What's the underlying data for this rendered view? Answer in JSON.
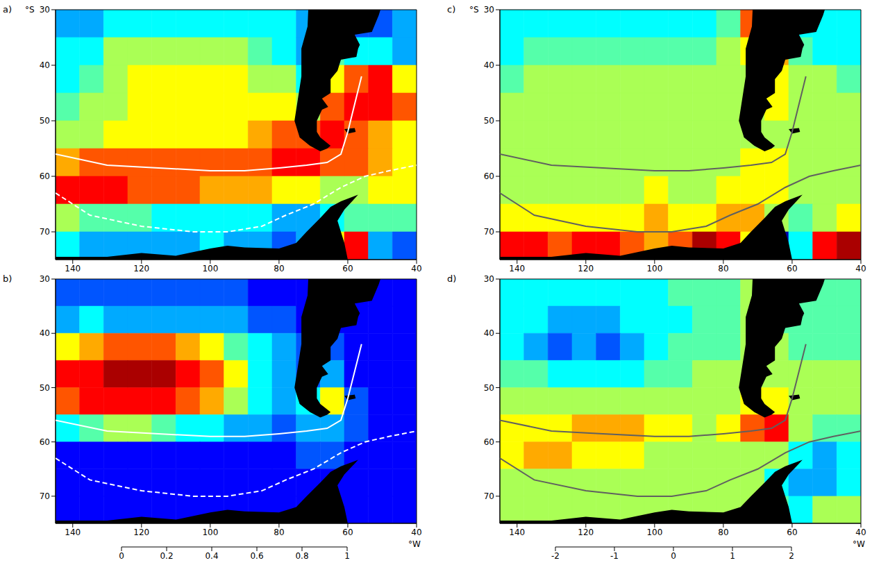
{
  "chart_data": [
    {
      "type": "heatmap",
      "title": "a)",
      "ylabel": "°S",
      "xlim": [
        145,
        40
      ],
      "ylim": [
        75,
        30
      ],
      "xticks": [
        140,
        120,
        100,
        80,
        60,
        40
      ],
      "yticks": [
        30,
        40,
        50,
        60,
        70
      ],
      "xbins": [
        145,
        138,
        131,
        124,
        117,
        110,
        103,
        96,
        89,
        82,
        75,
        68,
        61,
        54,
        47,
        40
      ],
      "ybins": [
        30,
        35,
        40,
        45,
        50,
        55,
        60,
        65,
        70,
        75
      ],
      "cells": [
        [
          0.3,
          0.3,
          0.35,
          0.35,
          0.4,
          0.4,
          0.4,
          0.4,
          0.4,
          0.35,
          0.3,
          0.25,
          0.2,
          0.2,
          0.25
        ],
        [
          0.35,
          0.4,
          0.5,
          0.55,
          0.55,
          0.55,
          0.55,
          0.5,
          0.45,
          0.4,
          0.3,
          0.45,
          0.4,
          0.35,
          0.3
        ],
        [
          0.4,
          0.45,
          0.55,
          0.6,
          0.6,
          0.6,
          0.6,
          0.6,
          0.55,
          0.5,
          0.4,
          0.6,
          0.8,
          0.85,
          0.6
        ],
        [
          0.45,
          0.5,
          0.55,
          0.6,
          0.6,
          0.6,
          0.6,
          0.6,
          0.6,
          0.6,
          0.5,
          0.75,
          0.85,
          0.85,
          0.75
        ],
        [
          0.5,
          0.55,
          0.6,
          0.6,
          0.65,
          0.65,
          0.65,
          0.65,
          0.7,
          0.8,
          0.8,
          0.85,
          0.75,
          0.7,
          0.65
        ],
        [
          0.7,
          0.75,
          0.75,
          0.75,
          0.75,
          0.75,
          0.75,
          0.75,
          0.75,
          0.85,
          0.85,
          0.8,
          0.75,
          0.7,
          0.65
        ],
        [
          0.85,
          0.85,
          0.85,
          0.8,
          0.75,
          0.75,
          0.7,
          0.7,
          0.7,
          0.65,
          0.6,
          0.5,
          0.55,
          0.6,
          0.6
        ],
        [
          0.5,
          0.45,
          0.45,
          0.45,
          0.4,
          0.4,
          0.4,
          0.4,
          0.35,
          0.3,
          0.3,
          0.35,
          0.45,
          0.45,
          0.45
        ],
        [
          0.35,
          0.3,
          0.3,
          0.3,
          0.3,
          0.3,
          0.35,
          0.3,
          0.3,
          0.2,
          0.3,
          0.6,
          0.85,
          0.3,
          0.2
        ]
      ],
      "colorbar": {
        "range": [
          0,
          1
        ],
        "ticks": [
          0,
          0.2,
          0.4,
          0.6,
          0.8,
          1
        ]
      },
      "series": [
        {
          "color": "#ffffff",
          "line_style": "solid",
          "x": [
            145,
            130,
            115,
            100,
            90,
            80,
            72,
            66,
            62,
            60,
            58,
            56
          ],
          "values": [
            56,
            58,
            58.5,
            59,
            59,
            58.5,
            58,
            57.5,
            56,
            52,
            47,
            42
          ]
        },
        {
          "color": "#ffffff",
          "line_style": "dashed",
          "x": [
            145,
            135,
            120,
            105,
            95,
            85,
            78,
            70,
            62,
            55,
            48,
            40
          ],
          "values": [
            63,
            67,
            69,
            70,
            70,
            69,
            67,
            65,
            62,
            60,
            59,
            58
          ]
        }
      ]
    },
    {
      "type": "heatmap",
      "title": "b)",
      "xlabel": "°W",
      "xlim": [
        145,
        40
      ],
      "ylim": [
        75,
        30
      ],
      "xticks": [
        140,
        120,
        100,
        80,
        60,
        40
      ],
      "yticks": [
        30,
        40,
        50,
        60,
        70
      ],
      "xbins": [
        145,
        138,
        131,
        124,
        117,
        110,
        103,
        96,
        89,
        82,
        75,
        68,
        61,
        54,
        47,
        40
      ],
      "ybins": [
        30,
        35,
        40,
        45,
        50,
        55,
        60,
        65,
        70,
        75
      ],
      "cells": [
        [
          0.2,
          0.2,
          0.2,
          0.2,
          0.2,
          0.2,
          0.2,
          0.2,
          0.15,
          0.15,
          0.1,
          0.1,
          0.1,
          0.1,
          0.1
        ],
        [
          0.3,
          0.35,
          0.3,
          0.3,
          0.3,
          0.3,
          0.3,
          0.25,
          0.2,
          0.2,
          0.1,
          0.15,
          0.1,
          0.1,
          0.1
        ],
        [
          0.6,
          0.7,
          0.75,
          0.75,
          0.75,
          0.7,
          0.6,
          0.45,
          0.35,
          0.25,
          0.2,
          0.2,
          0.15,
          0.15,
          0.1
        ],
        [
          0.85,
          0.9,
          0.95,
          1.0,
          0.95,
          0.9,
          0.8,
          0.6,
          0.4,
          0.3,
          0.2,
          0.25,
          0.15,
          0.1,
          0.1
        ],
        [
          0.8,
          0.85,
          0.9,
          0.9,
          0.85,
          0.8,
          0.7,
          0.5,
          0.4,
          0.3,
          0.35,
          0.6,
          0.2,
          0.15,
          0.1
        ],
        [
          0.4,
          0.45,
          0.5,
          0.5,
          0.45,
          0.4,
          0.35,
          0.3,
          0.25,
          0.2,
          0.25,
          0.3,
          0.2,
          0.15,
          0.1
        ],
        [
          0.15,
          0.15,
          0.15,
          0.15,
          0.15,
          0.15,
          0.15,
          0.15,
          0.15,
          0.15,
          0.2,
          0.2,
          0.15,
          0.1,
          0.1
        ],
        [
          0.1,
          0.1,
          0.1,
          0.1,
          0.1,
          0.1,
          0.1,
          0.1,
          0.1,
          0.1,
          0.1,
          0.15,
          0.1,
          0.1,
          0.1
        ],
        [
          0.1,
          0.1,
          0.1,
          0.1,
          0.1,
          0.1,
          0.1,
          0.1,
          0.1,
          0.1,
          0.1,
          0.15,
          0.1,
          0.1,
          0.1
        ]
      ],
      "colorbar": {
        "range": [
          0,
          1
        ],
        "ticks": [
          0,
          0.2,
          0.4,
          0.6,
          0.8,
          1
        ]
      },
      "series": [
        {
          "color": "#ffffff",
          "line_style": "solid",
          "x": [
            145,
            130,
            115,
            100,
            90,
            80,
            72,
            66,
            62,
            60,
            58,
            56
          ],
          "values": [
            56,
            58,
            58.5,
            59,
            59,
            58.5,
            58,
            57.5,
            56,
            52,
            47,
            42
          ]
        },
        {
          "color": "#ffffff",
          "line_style": "dashed",
          "x": [
            145,
            135,
            120,
            105,
            95,
            85,
            78,
            70,
            62,
            55,
            48,
            40
          ],
          "values": [
            63,
            67,
            69,
            70,
            70,
            69,
            67,
            65,
            62,
            60,
            59,
            58
          ]
        }
      ]
    },
    {
      "type": "heatmap",
      "title": "c)",
      "ylabel": "°S",
      "xlim": [
        145,
        40
      ],
      "ylim": [
        75,
        30
      ],
      "xticks": [
        140,
        120,
        100,
        80,
        60,
        40
      ],
      "yticks": [
        30,
        40,
        50,
        60,
        70
      ],
      "xbins": [
        145,
        138,
        131,
        124,
        117,
        110,
        103,
        96,
        89,
        82,
        75,
        68,
        61,
        54,
        47,
        40
      ],
      "ybins": [
        30,
        35,
        40,
        45,
        50,
        55,
        60,
        65,
        70,
        75
      ],
      "cells": [
        [
          -0.5,
          -0.5,
          -0.6,
          -0.6,
          -0.6,
          -0.6,
          -0.6,
          -0.5,
          -0.4,
          -0.2,
          1.2,
          -0.3,
          -0.5,
          -0.6,
          -0.6
        ],
        [
          -0.4,
          -0.3,
          -0.2,
          -0.2,
          -0.2,
          -0.2,
          -0.2,
          -0.2,
          -0.1,
          0.1,
          0.5,
          0.8,
          -0.3,
          -0.5,
          -0.5
        ],
        [
          -0.1,
          0,
          0,
          0,
          0,
          0,
          0,
          0,
          0,
          0.1,
          0.3,
          0.6,
          0.3,
          0,
          -0.2
        ],
        [
          0,
          0.1,
          0.1,
          0,
          0,
          0,
          0,
          0,
          0.1,
          0.2,
          0.2,
          0.4,
          0.2,
          0.1,
          0.1
        ],
        [
          0.1,
          0.1,
          0.1,
          0.1,
          0.1,
          0.1,
          0.1,
          0.1,
          0.1,
          0.2,
          0.3,
          0.3,
          0.1,
          0.1,
          0.1
        ],
        [
          0.2,
          0.2,
          0.2,
          0.2,
          0.2,
          0.2,
          0.2,
          0.2,
          0.2,
          0.3,
          0.4,
          0.4,
          0.2,
          0.1,
          0
        ],
        [
          0.3,
          0.3,
          0.3,
          0.3,
          0.3,
          0.3,
          0.4,
          0.3,
          0.3,
          0.4,
          0.5,
          0.4,
          0.2,
          0.1,
          0
        ],
        [
          0.5,
          0.5,
          0.5,
          0.5,
          0.6,
          0.6,
          0.7,
          0.6,
          0.5,
          0.7,
          0.7,
          0.2,
          -0.3,
          0.2,
          0.5
        ],
        [
          1.5,
          1.4,
          1.2,
          1.4,
          1.5,
          1.2,
          0.9,
          1.2,
          1.8,
          1.5,
          0.5,
          -1.8,
          -0.5,
          1.5,
          1.8
        ]
      ],
      "colorbar": {
        "range": [
          -2,
          2
        ],
        "ticks": [
          -2,
          -1,
          0,
          1,
          2
        ]
      },
      "series": [
        {
          "color": "#606060",
          "line_style": "solid",
          "x": [
            145,
            130,
            115,
            100,
            90,
            80,
            72,
            66,
            62,
            60,
            58,
            56
          ],
          "values": [
            56,
            58,
            58.5,
            59,
            59,
            58.5,
            58,
            57.5,
            56,
            52,
            47,
            42
          ]
        },
        {
          "color": "#606060",
          "line_style": "solid",
          "x": [
            145,
            135,
            120,
            105,
            95,
            85,
            78,
            70,
            62,
            55,
            48,
            40
          ],
          "values": [
            63,
            67,
            69,
            70,
            70,
            69,
            67,
            65,
            62,
            60,
            59,
            58
          ]
        }
      ]
    },
    {
      "type": "heatmap",
      "title": "d)",
      "xlabel": "°W",
      "xlim": [
        145,
        40
      ],
      "ylim": [
        75,
        30
      ],
      "xticks": [
        140,
        120,
        100,
        80,
        60,
        40
      ],
      "yticks": [
        30,
        40,
        50,
        60,
        70
      ],
      "xbins": [
        145,
        138,
        131,
        124,
        117,
        110,
        103,
        96,
        89,
        82,
        75,
        68,
        61,
        54,
        47,
        40
      ],
      "ybins": [
        30,
        35,
        40,
        45,
        50,
        55,
        60,
        65,
        70,
        75
      ],
      "cells": [
        [
          -0.4,
          -0.5,
          -0.5,
          -0.5,
          -0.5,
          -0.4,
          -0.4,
          -0.3,
          -0.3,
          -0.2,
          0.3,
          -0.2,
          -0.3,
          -0.3,
          -0.3
        ],
        [
          -0.5,
          -0.6,
          -0.8,
          -0.7,
          -0.7,
          -0.6,
          -0.5,
          -0.4,
          -0.3,
          -0.2,
          0.1,
          -0.1,
          -0.3,
          -0.3,
          -0.3
        ],
        [
          -0.4,
          -0.8,
          -1.2,
          -1.0,
          -1.2,
          -0.8,
          -0.5,
          -0.3,
          -0.2,
          -0.1,
          0,
          0,
          -0.1,
          -0.2,
          -0.2
        ],
        [
          -0.2,
          -0.3,
          -0.5,
          -0.4,
          -0.5,
          -0.4,
          -0.3,
          -0.1,
          0,
          0,
          0.1,
          0,
          0,
          0,
          0
        ],
        [
          0.1,
          0.1,
          0,
          0,
          0,
          0,
          0,
          0.1,
          0.1,
          0.2,
          0.4,
          0.6,
          0.1,
          0,
          0
        ],
        [
          0.5,
          0.6,
          0.6,
          0.7,
          0.7,
          0.7,
          0.6,
          0.4,
          0.3,
          0.4,
          1.0,
          1.6,
          0.2,
          -0.2,
          -0.3
        ],
        [
          0.6,
          0.7,
          0.7,
          0.6,
          0.5,
          0.4,
          0.3,
          0.3,
          0.3,
          0.3,
          0.3,
          0,
          -0.6,
          -0.8,
          -0.6
        ],
        [
          0.2,
          0.2,
          0.2,
          0.2,
          0.2,
          0.2,
          0.2,
          0.2,
          0.2,
          0.3,
          0.1,
          -0.6,
          -0.9,
          -0.8,
          -0.5
        ],
        [
          0.1,
          0.1,
          0.1,
          0.1,
          0.1,
          0.1,
          0.1,
          0.1,
          0.1,
          0.1,
          0.1,
          -0.3,
          -0.5,
          0.3,
          0.2
        ]
      ],
      "colorbar": {
        "range": [
          -2,
          2
        ],
        "ticks": [
          -2,
          -1,
          0,
          1,
          2
        ]
      },
      "series": [
        {
          "color": "#606060",
          "line_style": "solid",
          "x": [
            145,
            130,
            115,
            100,
            90,
            80,
            72,
            66,
            62,
            60,
            58,
            56
          ],
          "values": [
            56,
            58,
            58.5,
            59,
            59,
            58.5,
            58,
            57.5,
            56,
            52,
            47,
            42
          ]
        },
        {
          "color": "#606060",
          "line_style": "solid",
          "x": [
            145,
            135,
            120,
            105,
            95,
            85,
            78,
            70,
            62,
            55,
            48,
            40
          ],
          "values": [
            63,
            67,
            69,
            70,
            70,
            69,
            67,
            65,
            62,
            60,
            59,
            58
          ]
        }
      ]
    }
  ]
}
